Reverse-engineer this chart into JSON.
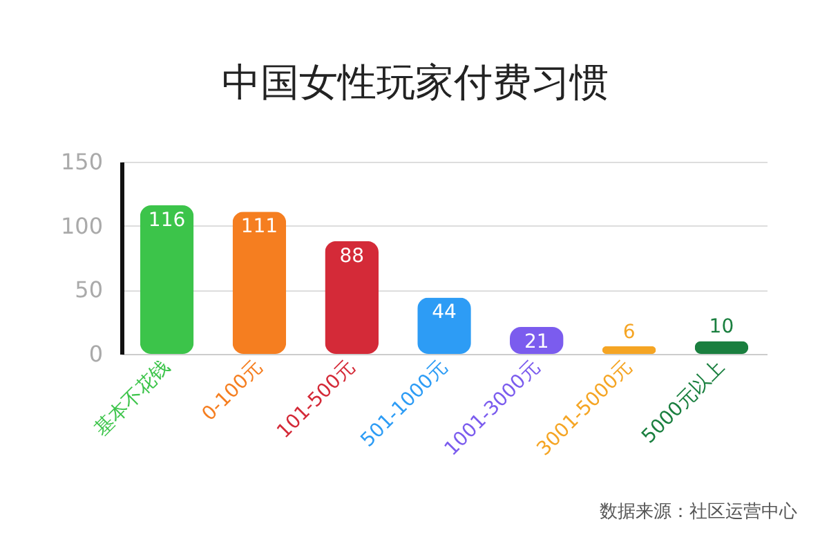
{
  "chart_data": {
    "type": "bar",
    "title": "中国女性玩家付费习惯",
    "categories": [
      "基本不花钱",
      "0-100元",
      "101-500元",
      "501-1000元",
      "1001-3000元",
      "3001-5000元",
      "5000元以上"
    ],
    "values": [
      116,
      111,
      88,
      44,
      21,
      6,
      10
    ],
    "colors": [
      "#3cc44a",
      "#f57e20",
      "#d42a38",
      "#2d9cf5",
      "#7b5cee",
      "#f5a524",
      "#1a7f3f"
    ],
    "ylim": [
      0,
      150
    ],
    "yticks": [
      0,
      50,
      100,
      150
    ],
    "grid": "y",
    "data_labels": true,
    "annotations": [
      "数据来源：社区运营中心"
    ]
  }
}
